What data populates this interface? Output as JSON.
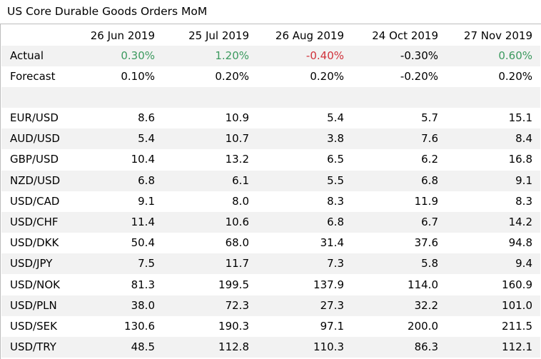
{
  "title": "US Core Durable Goods Orders MoM",
  "columns": [
    "26 Jun 2019",
    "25 Jul 2019",
    "26 Aug 2019",
    "24 Oct 2019",
    "27 Nov 2019"
  ],
  "actual": {
    "label": "Actual",
    "values": [
      "0.30%",
      "1.20%",
      "-0.40%",
      "-0.30%",
      "0.60%"
    ]
  },
  "forecast": {
    "label": "Forecast",
    "values": [
      "0.10%",
      "0.20%",
      "0.20%",
      "-0.20%",
      "0.20%"
    ]
  },
  "pairs": [
    {
      "label": "EUR/USD",
      "values": [
        "8.6",
        "10.9",
        "5.4",
        "5.7",
        "15.1"
      ]
    },
    {
      "label": "AUD/USD",
      "values": [
        "5.4",
        "10.7",
        "3.8",
        "7.6",
        "8.4"
      ]
    },
    {
      "label": "GBP/USD",
      "values": [
        "10.4",
        "13.2",
        "6.5",
        "6.2",
        "16.8"
      ]
    },
    {
      "label": "NZD/USD",
      "values": [
        "6.8",
        "6.1",
        "5.5",
        "6.8",
        "9.1"
      ]
    },
    {
      "label": "USD/CAD",
      "values": [
        "9.1",
        "8.0",
        "8.3",
        "11.9",
        "8.3"
      ]
    },
    {
      "label": "USD/CHF",
      "values": [
        "11.4",
        "10.6",
        "6.8",
        "6.7",
        "14.2"
      ]
    },
    {
      "label": "USD/DKK",
      "values": [
        "50.4",
        "68.0",
        "31.4",
        "37.6",
        "94.8"
      ]
    },
    {
      "label": "USD/JPY",
      "values": [
        "7.5",
        "11.7",
        "7.3",
        "5.8",
        "9.4"
      ]
    },
    {
      "label": "USD/NOK",
      "values": [
        "81.3",
        "199.5",
        "137.9",
        "114.0",
        "160.9"
      ]
    },
    {
      "label": "USD/PLN",
      "values": [
        "38.0",
        "72.3",
        "27.3",
        "32.2",
        "101.0"
      ]
    },
    {
      "label": "USD/SEK",
      "values": [
        "130.6",
        "190.3",
        "97.1",
        "200.0",
        "211.5"
      ]
    },
    {
      "label": "USD/TRY",
      "values": [
        "48.5",
        "112.8",
        "110.3",
        "86.3",
        "112.1"
      ]
    }
  ],
  "colors": {
    "positive": "#3c9a5f",
    "negative": "#d0313a",
    "neutral": "#000000",
    "band": "#f2f2f2",
    "header_rule": "#d04040"
  }
}
